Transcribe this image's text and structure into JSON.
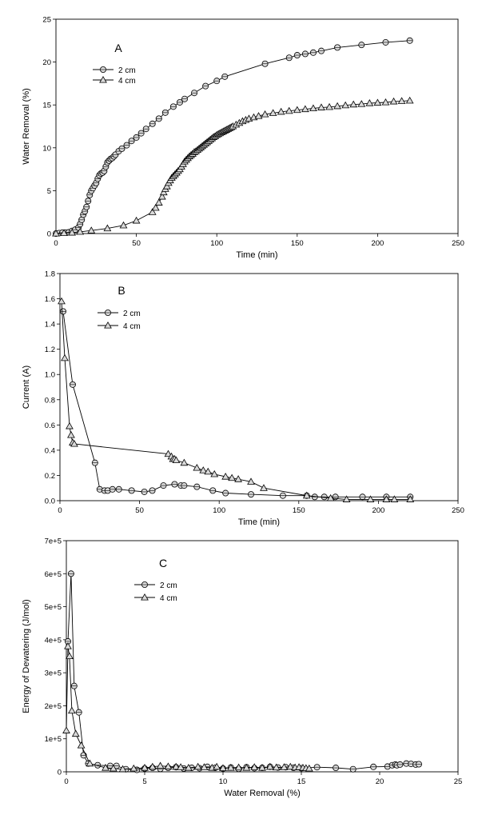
{
  "chart_data": [
    {
      "type": "line",
      "panel_label": "A",
      "xlabel": "Time (min)",
      "ylabel": "Water Removal (%)",
      "xlim": [
        0,
        250
      ],
      "ylim": [
        0,
        25
      ],
      "xticks": [
        "0",
        "50",
        "100",
        "150",
        "200",
        "250"
      ],
      "yticks": [
        "0",
        "5",
        "10",
        "15",
        "20",
        "25"
      ],
      "grid": false,
      "legend": "upper-left",
      "series": [
        {
          "name": "2 cm",
          "marker": "circle",
          "x": [
            0,
            2,
            4,
            6,
            8,
            10,
            12,
            14,
            15,
            16,
            17,
            18,
            19,
            20,
            21,
            22,
            23,
            24,
            25,
            26,
            27,
            28,
            29,
            30,
            31,
            32,
            33,
            34,
            35,
            36,
            37,
            39,
            41,
            44,
            47,
            50,
            53,
            56,
            60,
            64,
            68,
            73,
            77,
            80,
            86,
            93,
            100,
            105,
            130,
            145,
            150,
            155,
            160,
            165,
            175,
            190,
            205,
            220
          ],
          "y": [
            0,
            0.05,
            0.1,
            0.1,
            0.15,
            0.3,
            0.45,
            0.7,
            1.1,
            1.6,
            2.2,
            2.6,
            3.1,
            3.8,
            4.5,
            5.0,
            5.3,
            5.6,
            5.9,
            6.4,
            6.8,
            7.0,
            7.1,
            7.3,
            7.8,
            8.3,
            8.5,
            8.7,
            8.8,
            9.0,
            9.2,
            9.6,
            9.9,
            10.3,
            10.8,
            11.2,
            11.7,
            12.2,
            12.8,
            13.4,
            14.1,
            14.8,
            15.3,
            15.7,
            16.4,
            17.2,
            17.8,
            18.3,
            19.8,
            20.5,
            20.8,
            20.95,
            21.1,
            21.3,
            21.7,
            22.0,
            22.3,
            22.5
          ]
        },
        {
          "name": "4 cm",
          "marker": "triangle",
          "x": [
            0,
            5,
            10,
            15,
            22,
            32,
            42,
            50,
            60,
            62,
            64,
            66,
            67,
            68,
            69,
            70,
            71,
            72,
            73,
            74,
            75,
            76,
            77,
            78,
            79,
            80,
            81,
            82,
            83,
            84,
            85,
            86,
            87,
            88,
            89,
            90,
            91,
            92,
            93,
            94,
            95,
            96,
            97,
            98,
            99,
            100,
            101,
            102,
            103,
            104,
            105,
            106,
            107,
            108,
            109,
            110,
            112,
            114,
            116,
            118,
            120,
            123,
            126,
            130,
            135,
            140,
            145,
            150,
            155,
            160,
            165,
            170,
            175,
            180,
            185,
            190,
            195,
            200,
            205,
            210,
            215,
            220
          ],
          "y": [
            0,
            0.05,
            0.1,
            0.2,
            0.35,
            0.6,
            0.95,
            1.5,
            2.5,
            3.0,
            3.6,
            4.3,
            4.8,
            5.2,
            5.5,
            5.9,
            6.2,
            6.5,
            6.7,
            6.9,
            7.1,
            7.3,
            7.5,
            7.8,
            8.1,
            8.4,
            8.6,
            8.8,
            9.0,
            9.15,
            9.3,
            9.5,
            9.6,
            9.75,
            9.9,
            10.05,
            10.2,
            10.35,
            10.5,
            10.65,
            10.8,
            10.95,
            11.1,
            11.25,
            11.35,
            11.5,
            11.6,
            11.7,
            11.8,
            11.9,
            12.0,
            12.1,
            12.2,
            12.3,
            12.4,
            12.5,
            12.7,
            12.9,
            13.1,
            13.25,
            13.4,
            13.55,
            13.7,
            13.9,
            14.05,
            14.2,
            14.3,
            14.4,
            14.5,
            14.6,
            14.7,
            14.75,
            14.85,
            14.95,
            15.05,
            15.1,
            15.2,
            15.25,
            15.3,
            15.4,
            15.45,
            15.5
          ]
        }
      ]
    },
    {
      "type": "line",
      "panel_label": "B",
      "xlabel": "Time (min)",
      "ylabel": "Current (A)",
      "xlim": [
        0,
        250
      ],
      "ylim": [
        0,
        1.8
      ],
      "xticks": [
        "0",
        "50",
        "100",
        "150",
        "200",
        "250"
      ],
      "yticks": [
        "0.0",
        "0.2",
        "0.4",
        "0.6",
        "0.8",
        "1.0",
        "1.2",
        "1.4",
        "1.6",
        "1.8"
      ],
      "grid": false,
      "legend": "upper-left",
      "series": [
        {
          "name": "2 cm",
          "marker": "circle",
          "x": [
            2,
            8,
            22,
            25,
            28,
            30,
            33,
            37,
            45,
            53,
            58,
            65,
            72,
            76,
            78,
            86,
            96,
            104,
            120,
            140,
            155,
            160,
            166,
            173,
            190,
            205,
            220
          ],
          "y": [
            1.5,
            0.92,
            0.3,
            0.09,
            0.08,
            0.08,
            0.09,
            0.09,
            0.08,
            0.07,
            0.08,
            0.12,
            0.13,
            0.12,
            0.12,
            0.11,
            0.08,
            0.06,
            0.05,
            0.04,
            0.04,
            0.03,
            0.03,
            0.03,
            0.03,
            0.03,
            0.03
          ]
        },
        {
          "name": "4 cm",
          "marker": "triangle",
          "x": [
            1,
            3,
            6,
            7,
            8,
            9,
            68,
            70,
            71,
            72,
            73,
            78,
            86,
            90,
            93,
            97,
            104,
            108,
            112,
            120,
            128,
            155,
            170,
            180,
            195,
            205,
            210,
            220
          ],
          "y": [
            1.58,
            1.13,
            0.59,
            0.52,
            0.46,
            0.45,
            0.37,
            0.35,
            0.33,
            0.33,
            0.32,
            0.3,
            0.26,
            0.24,
            0.23,
            0.21,
            0.19,
            0.18,
            0.17,
            0.15,
            0.1,
            0.04,
            0.02,
            0.01,
            0.01,
            0.01,
            0.01,
            0.01
          ]
        }
      ]
    },
    {
      "type": "line",
      "panel_label": "C",
      "xlabel": "Water Removal (%)",
      "ylabel": "Energy of Dewatering (J/mol)",
      "xlim": [
        0,
        25
      ],
      "ylim": [
        0,
        700000
      ],
      "xticks": [
        "0",
        "5",
        "10",
        "15",
        "20",
        "25"
      ],
      "yticks": [
        "0",
        "1e+5",
        "2e+5",
        "3e+5",
        "4e+5",
        "5e+5",
        "6e+5",
        "7e+5"
      ],
      "grid": false,
      "legend": "upper-left",
      "series": [
        {
          "name": "2 cm",
          "marker": "circle",
          "x": [
            0.1,
            0.3,
            0.5,
            0.8,
            1.1,
            1.4,
            2.0,
            2.8,
            3.2,
            3.8,
            4.5,
            5.0,
            5.5,
            6.0,
            6.5,
            7.0,
            7.5,
            8.0,
            8.5,
            9.0,
            9.5,
            10.0,
            10.5,
            11.0,
            11.5,
            12.0,
            12.5,
            13.0,
            13.5,
            14.0,
            14.5,
            15.0,
            16.0,
            17.2,
            18.3,
            19.6,
            20.5,
            20.8,
            21.0,
            21.1,
            21.3,
            21.7,
            22.0,
            22.3,
            22.5
          ],
          "y": [
            395000,
            600000,
            260000,
            180000,
            50000,
            25000,
            20000,
            18000,
            18000,
            8000,
            6000,
            10000,
            12000,
            9000,
            12000,
            14000,
            10000,
            12000,
            11000,
            15000,
            12000,
            10000,
            13000,
            9000,
            14000,
            11000,
            12000,
            15000,
            13000,
            14000,
            12000,
            11000,
            14000,
            12000,
            8000,
            15000,
            16000,
            20000,
            22000,
            20000,
            22000,
            25000,
            24000,
            22000,
            23000
          ]
        },
        {
          "name": "4 cm",
          "marker": "triangle",
          "x": [
            0,
            0.1,
            0.2,
            0.35,
            0.6,
            0.95,
            1.5,
            2.5,
            3.0,
            3.6,
            4.3,
            5.0,
            5.5,
            6.0,
            6.5,
            7.0,
            7.3,
            7.8,
            8.4,
            8.8,
            9.3,
            9.6,
            10.0,
            10.5,
            11.0,
            11.5,
            12.0,
            12.5,
            13.0,
            13.4,
            13.9,
            14.3,
            14.6,
            14.85,
            15.1,
            15.3,
            15.5
          ],
          "y": [
            125000,
            380000,
            350000,
            185000,
            115000,
            80000,
            25000,
            12000,
            10000,
            8000,
            10000,
            12000,
            15000,
            18000,
            16000,
            15000,
            14000,
            12000,
            15000,
            14000,
            12000,
            15000,
            11000,
            12000,
            13000,
            12000,
            14000,
            12000,
            15000,
            13000,
            14000,
            15000,
            13000,
            14000,
            12000,
            11000,
            10000
          ]
        }
      ]
    }
  ]
}
